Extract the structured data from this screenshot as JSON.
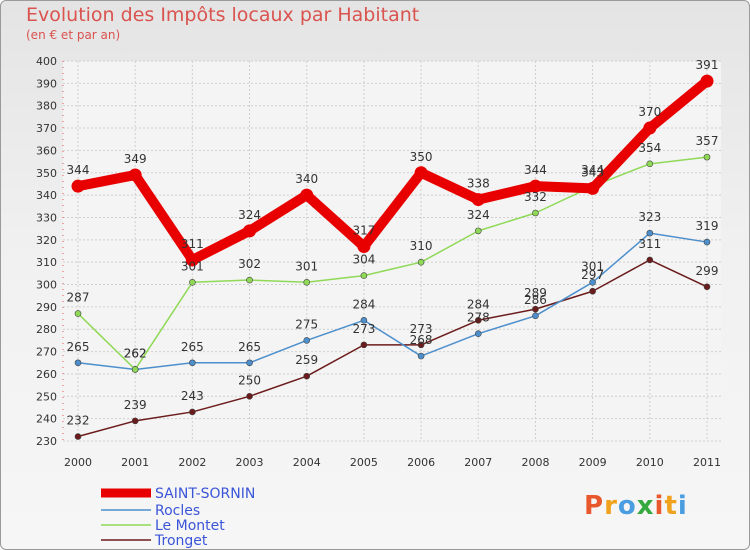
{
  "title": "Evolution des Impôts locaux par Habitant",
  "subtitle": "(en € et par an)",
  "brand": "Proxiti",
  "brand_colors": [
    "#e8582c",
    "#f0a21c",
    "#4a9de0",
    "#36a93f",
    "#e8582c",
    "#f0a21c",
    "#4a9de0"
  ],
  "chart_data": {
    "type": "line",
    "title": "Evolution des Impôts locaux par Habitant",
    "subtitle": "(en € et par an)",
    "xlabel": "",
    "ylabel": "",
    "x": [
      "2000",
      "2001",
      "2002",
      "2003",
      "2004",
      "2005",
      "2006",
      "2007",
      "2008",
      "2009",
      "2010",
      "2011"
    ],
    "ylim": [
      230,
      400
    ],
    "yticks": [
      "230",
      "240",
      "250",
      "260",
      "270",
      "280",
      "290",
      "300",
      "310",
      "320",
      "330",
      "340",
      "350",
      "360",
      "370",
      "380",
      "390",
      "400"
    ],
    "grid": true,
    "legend_position": "bottom-left",
    "series": [
      {
        "name": "SAINT-SORNIN",
        "color": "#e80000",
        "values": [
          344,
          349,
          311,
          324,
          340,
          317,
          350,
          338,
          344,
          343,
          370,
          391
        ]
      },
      {
        "name": "Rocles",
        "color": "#4d8fcc",
        "values": [
          265,
          262,
          265,
          265,
          275,
          284,
          268,
          278,
          286,
          301,
          323,
          319
        ]
      },
      {
        "name": "Le Montet",
        "color": "#8fd957",
        "values": [
          287,
          262,
          301,
          302,
          301,
          304,
          310,
          324,
          332,
          344,
          354,
          357
        ]
      },
      {
        "name": "Tronget",
        "color": "#6b1b1b",
        "values": [
          232,
          239,
          243,
          250,
          259,
          273,
          273,
          284,
          289,
          297,
          311,
          299
        ]
      }
    ]
  }
}
